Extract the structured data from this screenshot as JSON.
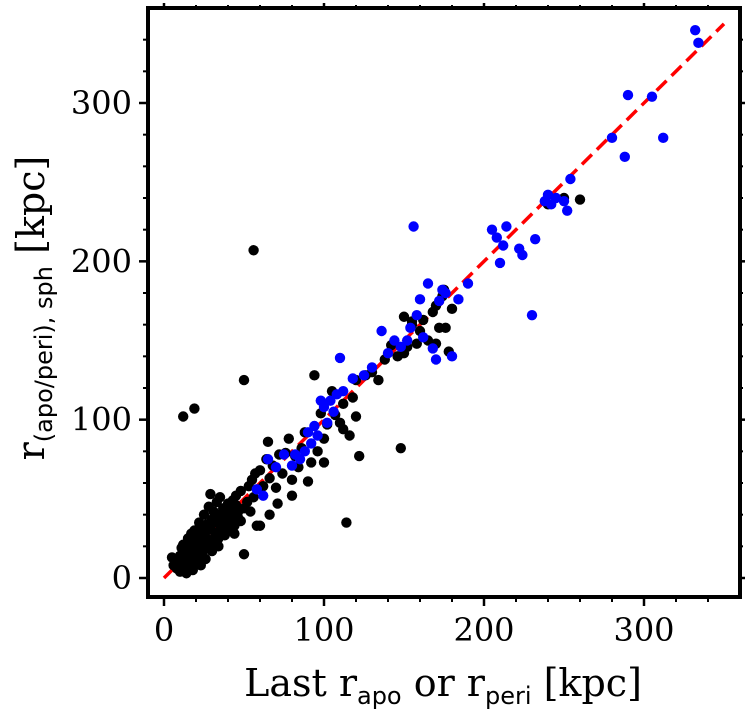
{
  "chart_data": {
    "type": "scatter",
    "title": "",
    "xlabel": {
      "main": "Last r",
      "sub1": "apo",
      "mid": " or r",
      "sub2": "peri",
      "tail": " [kpc]"
    },
    "ylabel": {
      "main": "r",
      "sub": "(apo/peri), sph",
      "tail": " [kpc]"
    },
    "xlim": [
      -10,
      360
    ],
    "ylim": [
      -12,
      360
    ],
    "xticks": [
      0,
      100,
      200,
      300
    ],
    "xtick_labels": [
      "0",
      "100",
      "200",
      "300"
    ],
    "yticks": [
      0,
      100,
      200,
      300
    ],
    "ytick_labels": [
      "0",
      "100",
      "200",
      "300"
    ],
    "grid": false,
    "series": [
      {
        "name": "black",
        "color": "#000000",
        "points": [
          [
            5,
            13
          ],
          [
            6,
            8
          ],
          [
            7,
            10
          ],
          [
            8,
            6
          ],
          [
            9,
            11
          ],
          [
            10,
            14
          ],
          [
            10,
            4
          ],
          [
            11,
            19
          ],
          [
            11,
            8
          ],
          [
            12,
            6
          ],
          [
            12,
            21
          ],
          [
            13,
            14
          ],
          [
            13,
            9
          ],
          [
            14,
            17
          ],
          [
            14,
            3
          ],
          [
            15,
            11
          ],
          [
            15,
            25
          ],
          [
            16,
            7
          ],
          [
            16,
            20
          ],
          [
            17,
            28
          ],
          [
            17,
            12
          ],
          [
            18,
            5
          ],
          [
            18,
            16
          ],
          [
            19,
            23
          ],
          [
            19,
            30
          ],
          [
            20,
            10
          ],
          [
            20,
            18
          ],
          [
            21,
            25
          ],
          [
            21,
            13
          ],
          [
            22,
            35
          ],
          [
            22,
            20
          ],
          [
            23,
            8
          ],
          [
            23,
            27
          ],
          [
            24,
            31
          ],
          [
            24,
            16
          ],
          [
            25,
            22
          ],
          [
            25,
            40
          ],
          [
            26,
            12
          ],
          [
            26,
            29
          ],
          [
            27,
            34
          ],
          [
            27,
            19
          ],
          [
            28,
            45
          ],
          [
            28,
            24
          ],
          [
            29,
            53
          ],
          [
            29,
            31
          ],
          [
            30,
            17
          ],
          [
            30,
            37
          ],
          [
            31,
            42
          ],
          [
            31,
            22
          ],
          [
            32,
            28
          ],
          [
            33,
            48
          ],
          [
            33,
            35
          ],
          [
            34,
            25
          ],
          [
            34,
            40
          ],
          [
            35,
            51
          ],
          [
            35,
            30
          ],
          [
            36,
            38
          ],
          [
            37,
            44
          ],
          [
            37,
            33
          ],
          [
            38,
            27
          ],
          [
            38,
            41
          ],
          [
            39,
            35
          ],
          [
            40,
            47
          ],
          [
            40,
            38
          ],
          [
            41,
            30
          ],
          [
            41,
            43
          ],
          [
            42,
            36
          ],
          [
            43,
            49
          ],
          [
            43,
            40
          ],
          [
            44,
            33
          ],
          [
            45,
            46
          ],
          [
            45,
            52
          ],
          [
            46,
            39
          ],
          [
            47,
            43
          ],
          [
            48,
            36
          ],
          [
            48,
            55
          ],
          [
            50,
            44
          ],
          [
            50,
            15
          ],
          [
            52,
            48
          ],
          [
            53,
            58
          ],
          [
            54,
            42
          ],
          [
            55,
            62
          ],
          [
            56,
            51
          ],
          [
            57,
            66
          ],
          [
            58,
            33
          ],
          [
            60,
            33
          ],
          [
            60,
            68
          ],
          [
            62,
            58
          ],
          [
            64,
            75
          ],
          [
            65,
            86
          ],
          [
            66,
            63
          ],
          [
            68,
            71
          ],
          [
            70,
            57
          ],
          [
            71,
            47
          ],
          [
            72,
            78
          ],
          [
            74,
            66
          ],
          [
            76,
            79
          ],
          [
            78,
            88
          ],
          [
            80,
            52
          ],
          [
            82,
            77
          ],
          [
            84,
            70
          ],
          [
            86,
            82
          ],
          [
            88,
            92
          ],
          [
            90,
            61
          ],
          [
            92,
            73
          ],
          [
            94,
            128
          ],
          [
            96,
            80
          ],
          [
            98,
            104
          ],
          [
            100,
            88
          ],
          [
            102,
            97
          ],
          [
            105,
            118
          ],
          [
            107,
            103
          ],
          [
            110,
            98
          ],
          [
            112,
            110
          ],
          [
            114,
            35
          ],
          [
            116,
            90
          ],
          [
            118,
            114
          ],
          [
            120,
            125
          ],
          [
            122,
            77
          ],
          [
            126,
            128
          ],
          [
            130,
            130
          ],
          [
            134,
            125
          ],
          [
            138,
            138
          ],
          [
            142,
            147
          ],
          [
            146,
            140
          ],
          [
            148,
            82
          ],
          [
            150,
            165
          ],
          [
            152,
            146
          ],
          [
            155,
            160
          ],
          [
            158,
            148
          ],
          [
            160,
            156
          ],
          [
            162,
            163
          ],
          [
            165,
            150
          ],
          [
            168,
            168
          ],
          [
            170,
            172
          ],
          [
            172,
            158
          ],
          [
            174,
            178
          ],
          [
            176,
            158
          ],
          [
            178,
            143
          ],
          [
            180,
            170
          ],
          [
            56,
            207
          ],
          [
            50,
            125
          ],
          [
            19,
            107
          ],
          [
            12,
            102
          ],
          [
            112,
            94
          ],
          [
            150,
            142
          ],
          [
            170,
            148
          ],
          [
            240,
            236
          ],
          [
            250,
            240
          ],
          [
            260,
            239
          ],
          [
            175,
            182
          ],
          [
            155,
            162
          ],
          [
            120,
            102
          ],
          [
            100,
            73
          ],
          [
            80,
            62
          ],
          [
            66,
            40
          ],
          [
            44,
            28
          ],
          [
            34,
            20
          ]
        ]
      },
      {
        "name": "blue",
        "color": "#0000ff",
        "points": [
          [
            58,
            56
          ],
          [
            62,
            52
          ],
          [
            65,
            75
          ],
          [
            70,
            70
          ],
          [
            75,
            78
          ],
          [
            80,
            71
          ],
          [
            82,
            78
          ],
          [
            85,
            75
          ],
          [
            88,
            80
          ],
          [
            90,
            92
          ],
          [
            92,
            85
          ],
          [
            94,
            96
          ],
          [
            96,
            90
          ],
          [
            98,
            112
          ],
          [
            100,
            108
          ],
          [
            102,
            98
          ],
          [
            104,
            112
          ],
          [
            106,
            105
          ],
          [
            108,
            116
          ],
          [
            110,
            139
          ],
          [
            112,
            118
          ],
          [
            118,
            126
          ],
          [
            125,
            128
          ],
          [
            130,
            133
          ],
          [
            136,
            156
          ],
          [
            140,
            142
          ],
          [
            144,
            150
          ],
          [
            148,
            146
          ],
          [
            152,
            150
          ],
          [
            154,
            158
          ],
          [
            156,
            222
          ],
          [
            158,
            166
          ],
          [
            160,
            176
          ],
          [
            162,
            152
          ],
          [
            165,
            186
          ],
          [
            168,
            145
          ],
          [
            170,
            138
          ],
          [
            172,
            175
          ],
          [
            174,
            182
          ],
          [
            176,
            180
          ],
          [
            180,
            140
          ],
          [
            184,
            176
          ],
          [
            190,
            186
          ],
          [
            205,
            220
          ],
          [
            208,
            215
          ],
          [
            210,
            199
          ],
          [
            212,
            210
          ],
          [
            214,
            222
          ],
          [
            222,
            208
          ],
          [
            224,
            204
          ],
          [
            230,
            166
          ],
          [
            232,
            214
          ],
          [
            238,
            238
          ],
          [
            240,
            242
          ],
          [
            242,
            236
          ],
          [
            245,
            240
          ],
          [
            250,
            238
          ],
          [
            252,
            232
          ],
          [
            254,
            252
          ],
          [
            280,
            278
          ],
          [
            288,
            266
          ],
          [
            290,
            305
          ],
          [
            305,
            304
          ],
          [
            312,
            278
          ],
          [
            332,
            346
          ],
          [
            334,
            338
          ]
        ]
      }
    ],
    "reference_line": {
      "name": "one-to-one",
      "color": "#ff0000",
      "style": "dashed",
      "x": [
        0,
        350
      ],
      "y": [
        0,
        350
      ]
    }
  }
}
